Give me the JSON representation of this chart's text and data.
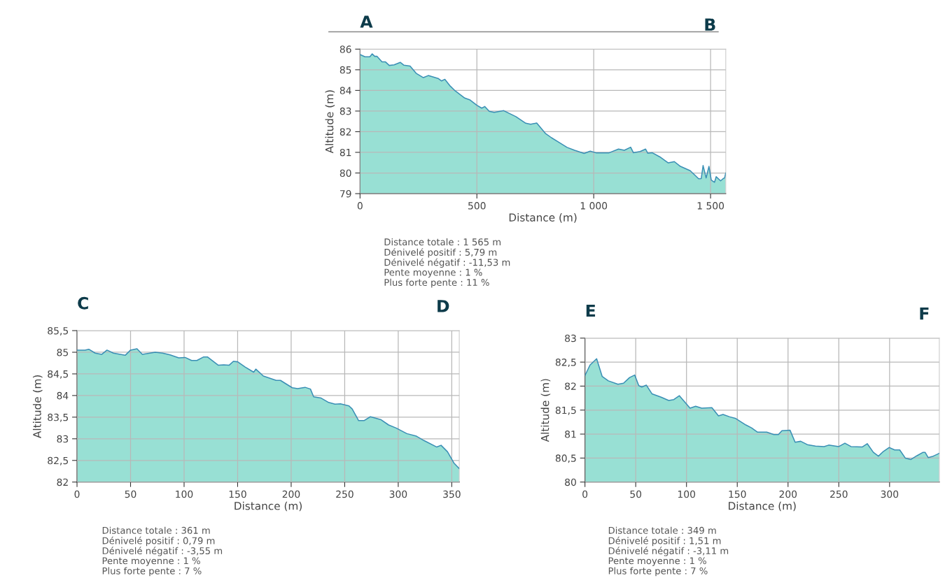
{
  "chart_data": [
    {
      "type": "area",
      "xlabel": "Distance (m)",
      "ylabel": "Altitude (m)",
      "annotations": [
        "A",
        "B",
        "Distance totale : 1 565 m",
        "Dénivelé positif : 5,79 m",
        "Dénivelé négatif : -11,53 m",
        "Pente moyenne : 1 %",
        "Plus forte pente : 11 %"
      ],
      "xlim": [
        0,
        1565
      ],
      "xticks": [
        0,
        500,
        {
          "value": 1000,
          "label": "1 000"
        },
        {
          "value": 1500,
          "label": "1 500"
        }
      ],
      "ylim": [
        79,
        86
      ],
      "yticks": [
        79,
        80,
        81,
        82,
        83,
        84,
        85,
        86
      ],
      "grid": true,
      "legend": false,
      "series": [
        {
          "color": "#98e0d4",
          "x": [
            0,
            21,
            42,
            52,
            63,
            73,
            94,
            109,
            125,
            146,
            172,
            188,
            214,
            240,
            271,
            292,
            334,
            349,
            363,
            386,
            407,
            448,
            469,
            500,
            521,
            534,
            553,
            574,
            615,
            667,
            709,
            730,
            756,
            793,
            819,
            845,
            886,
            918,
            959,
            985,
            1012,
            1064,
            1106,
            1131,
            1158,
            1170,
            1199,
            1222,
            1231,
            1251,
            1283,
            1319,
            1345,
            1371,
            1413,
            1449,
            1460,
            1468,
            1481,
            1493,
            1503,
            1517,
            1524,
            1543,
            1554,
            1560,
            1565
          ],
          "values": [
            85.74,
            85.63,
            85.63,
            85.77,
            85.65,
            85.65,
            85.38,
            85.38,
            85.21,
            85.24,
            85.36,
            85.22,
            85.18,
            84.83,
            84.62,
            84.72,
            84.58,
            84.46,
            84.54,
            84.21,
            83.98,
            83.63,
            83.55,
            83.28,
            83.14,
            83.22,
            82.99,
            82.94,
            83.02,
            82.73,
            82.41,
            82.36,
            82.42,
            81.92,
            81.71,
            81.53,
            81.24,
            81.1,
            80.95,
            81.06,
            80.97,
            80.97,
            81.16,
            81.1,
            81.25,
            80.98,
            81.04,
            81.16,
            80.96,
            80.98,
            80.78,
            80.49,
            80.55,
            80.32,
            80.11,
            79.72,
            79.73,
            80.36,
            79.76,
            80.32,
            79.66,
            79.55,
            79.82,
            79.62,
            79.73,
            79.76,
            80.0
          ]
        }
      ]
    },
    {
      "type": "area",
      "xlabel": "Distance (m)",
      "ylabel": "Altitude (m)",
      "annotations": [
        "C",
        "D",
        "Distance totale : 361 m",
        "Dénivelé positif : 0,79 m",
        "Dénivelé négatif : -3,55 m",
        "Pente moyenne : 1 %",
        "Plus forte pente : 7 %"
      ],
      "xlim": [
        0,
        357
      ],
      "xticks": [
        0,
        50,
        100,
        150,
        200,
        250,
        300,
        350
      ],
      "ylim": [
        82,
        85.5
      ],
      "yticks": [
        82,
        {
          "value": 82.5,
          "label": "82,5"
        },
        83,
        {
          "value": 83.5,
          "label": "83,5"
        },
        84,
        {
          "value": 84.5,
          "label": "84,5"
        },
        85,
        {
          "value": 85.5,
          "label": "85,5"
        }
      ],
      "grid": true,
      "legend": false,
      "series": [
        {
          "color": "#98e0d4",
          "x": [
            0,
            7.5,
            11,
            17,
            23,
            28,
            34,
            45,
            50,
            56,
            61,
            73,
            80,
            87,
            95,
            101,
            107,
            112,
            118,
            122,
            132,
            137,
            142,
            146,
            150,
            157,
            165,
            167,
            174,
            186,
            190,
            201,
            206,
            213,
            218,
            221,
            228,
            235,
            241,
            246,
            254,
            257,
            263,
            268,
            274,
            284,
            291,
            298,
            308,
            317,
            324,
            336,
            340,
            346,
            352,
            357
          ],
          "values": [
            85.05,
            85.05,
            85.07,
            84.98,
            84.95,
            85.05,
            84.98,
            84.93,
            85.05,
            85.08,
            84.95,
            85.0,
            84.98,
            84.94,
            84.87,
            84.88,
            84.81,
            84.81,
            84.89,
            84.89,
            84.7,
            84.71,
            84.7,
            84.79,
            84.78,
            84.66,
            84.54,
            84.61,
            84.45,
            84.35,
            84.35,
            84.18,
            84.16,
            84.19,
            84.15,
            83.97,
            83.94,
            83.84,
            83.8,
            83.81,
            83.76,
            83.69,
            83.42,
            83.42,
            83.51,
            83.44,
            83.32,
            83.25,
            83.12,
            83.06,
            82.96,
            82.81,
            82.85,
            82.7,
            82.44,
            82.31
          ]
        }
      ]
    },
    {
      "type": "area",
      "xlabel": "Distance (m)",
      "ylabel": "Altitude (m)",
      "annotations": [
        "E",
        "F",
        "Distance totale : 349 m",
        "Dénivelé positif : 1,51 m",
        "Dénivelé négatif : -3,11 m",
        "Pente moyenne : 1 %",
        "Plus forte pente : 7 %"
      ],
      "xlim": [
        0,
        349
      ],
      "xticks": [
        0,
        50,
        100,
        150,
        200,
        250,
        300
      ],
      "ylim": [
        80,
        83
      ],
      "yticks": [
        80,
        {
          "value": 80.5,
          "label": "80,5"
        },
        81,
        {
          "value": 81.5,
          "label": "81,5"
        },
        82,
        {
          "value": 82.5,
          "label": "82,5"
        },
        83
      ],
      "grid": true,
      "legend": false,
      "series": [
        {
          "color": "#98e0d4",
          "x": [
            0,
            5,
            11.5,
            17,
            23,
            32.5,
            38,
            44,
            49,
            53,
            56,
            60.5,
            66,
            75,
            82.5,
            87.5,
            93,
            103.5,
            109,
            115,
            125,
            131.5,
            136,
            142.5,
            148,
            158.5,
            164,
            170,
            179,
            186,
            190.5,
            194,
            202,
            207,
            212.5,
            219,
            227,
            235.5,
            240,
            250,
            256,
            262,
            273,
            278,
            284,
            289,
            294,
            299.5,
            305,
            310,
            315.5,
            321,
            327,
            333,
            335,
            338,
            343,
            349
          ],
          "values": [
            82.22,
            82.44,
            82.57,
            82.2,
            82.11,
            82.04,
            82.06,
            82.18,
            82.23,
            82.01,
            81.98,
            82.02,
            81.84,
            81.77,
            81.7,
            81.72,
            81.8,
            81.54,
            81.58,
            81.54,
            81.55,
            81.38,
            81.41,
            81.36,
            81.33,
            81.19,
            81.13,
            81.04,
            81.04,
            80.99,
            80.99,
            81.07,
            81.08,
            80.83,
            80.85,
            80.78,
            80.75,
            80.74,
            80.77,
            80.74,
            80.81,
            80.74,
            80.73,
            80.8,
            80.62,
            80.54,
            80.64,
            80.72,
            80.67,
            80.67,
            80.5,
            80.47,
            80.55,
            80.62,
            80.62,
            80.51,
            80.54,
            80.6
          ]
        }
      ]
    }
  ]
}
